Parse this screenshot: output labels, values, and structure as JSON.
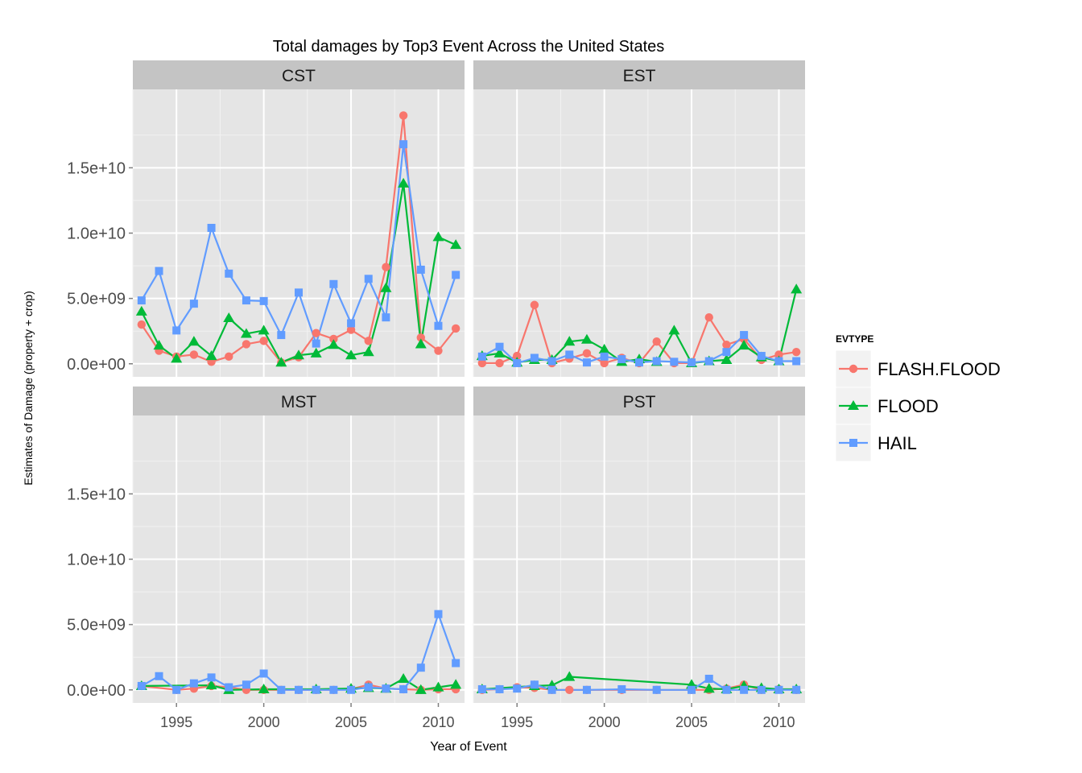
{
  "chart_data": {
    "type": "line",
    "title": "Total damages by Top3 Event Across the United States",
    "xlabel": "Year of Event",
    "ylabel": "Estimates of Damage (property + crop)",
    "xlim": [
      1992.5,
      2011.5
    ],
    "ylim": [
      -1000000000,
      21000000000
    ],
    "x_ticks": [
      1995,
      2000,
      2005,
      2010
    ],
    "y_ticks": [
      0,
      5000000000,
      10000000000,
      15000000000
    ],
    "y_tick_labels": [
      "0.0e+00",
      "5.0e+09",
      "1.0e+10",
      "1.5e+10"
    ],
    "grid": true,
    "legend": {
      "title": "EVTYPE",
      "position": "right",
      "entries": [
        {
          "label": "FLASH.FLOOD",
          "color": "#F8766D",
          "shape": "circle"
        },
        {
          "label": "FLOOD",
          "color": "#00BA38",
          "shape": "triangle"
        },
        {
          "label": "HAIL",
          "color": "#619CFF",
          "shape": "square"
        }
      ]
    },
    "panels": [
      {
        "name": "CST",
        "series": [
          {
            "name": "FLASH.FLOOD",
            "x": [
              1993,
              1994,
              1995,
              1996,
              1997,
              1998,
              1999,
              2000,
              2001,
              2002,
              2003,
              2004,
              2005,
              2006,
              2007,
              2008,
              2009,
              2010,
              2011
            ],
            "values": [
              3000000000,
              1000000000,
              550000000,
              700000000,
              150000000,
              550000000,
              1500000000,
              1750000000,
              100000000,
              500000000,
              2350000000,
              1900000000,
              2600000000,
              1750000000,
              7400000000,
              19000000000,
              2000000000,
              1000000000,
              2700000000
            ]
          },
          {
            "name": "FLOOD",
            "x": [
              1993,
              1994,
              1995,
              1996,
              1997,
              1998,
              1999,
              2000,
              2001,
              2002,
              2003,
              2004,
              2005,
              2006,
              2007,
              2008,
              2009,
              2010,
              2011
            ],
            "values": [
              4000000000,
              1400000000,
              400000000,
              1700000000,
              600000000,
              3500000000,
              2300000000,
              2550000000,
              100000000,
              650000000,
              800000000,
              1450000000,
              650000000,
              900000000,
              5800000000,
              13800000000,
              1500000000,
              9700000000,
              9100000000
            ]
          },
          {
            "name": "HAIL",
            "x": [
              1993,
              1994,
              1995,
              1996,
              1997,
              1998,
              1999,
              2000,
              2001,
              2002,
              2003,
              2004,
              2005,
              2006,
              2007,
              2008,
              2009,
              2010,
              2011
            ],
            "values": [
              4850000000,
              7100000000,
              2550000000,
              4600000000,
              10400000000,
              6900000000,
              4850000000,
              4800000000,
              2200000000,
              5450000000,
              1550000000,
              6100000000,
              3100000000,
              6500000000,
              3550000000,
              16800000000,
              7200000000,
              2900000000,
              6800000000
            ]
          }
        ]
      },
      {
        "name": "EST",
        "series": [
          {
            "name": "FLASH.FLOOD",
            "x": [
              1993,
              1994,
              1995,
              1996,
              1997,
              1998,
              1999,
              2000,
              2001,
              2002,
              2003,
              2004,
              2005,
              2006,
              2007,
              2008,
              2009,
              2010,
              2011
            ],
            "values": [
              50000000,
              50000000,
              600000000,
              4500000000,
              50000000,
              400000000,
              800000000,
              50000000,
              450000000,
              50000000,
              1700000000,
              50000000,
              50000000,
              3550000000,
              1450000000,
              1900000000,
              300000000,
              700000000,
              900000000
            ]
          },
          {
            "name": "FLOOD",
            "x": [
              1993,
              1994,
              1995,
              1996,
              1997,
              1998,
              1999,
              2000,
              2001,
              2002,
              2003,
              2004,
              2005,
              2006,
              2007,
              2008,
              2009,
              2010,
              2011
            ],
            "values": [
              600000000,
              800000000,
              100000000,
              300000000,
              300000000,
              1700000000,
              1850000000,
              1100000000,
              150000000,
              350000000,
              150000000,
              2550000000,
              50000000,
              200000000,
              300000000,
              1400000000,
              500000000,
              200000000,
              5700000000
            ]
          },
          {
            "name": "HAIL",
            "x": [
              1993,
              1994,
              1995,
              1996,
              1997,
              1998,
              1999,
              2000,
              2001,
              2002,
              2003,
              2004,
              2005,
              2006,
              2007,
              2008,
              2009,
              2010,
              2011
            ],
            "values": [
              550000000,
              1300000000,
              50000000,
              450000000,
              200000000,
              700000000,
              100000000,
              550000000,
              350000000,
              100000000,
              200000000,
              150000000,
              100000000,
              200000000,
              900000000,
              2200000000,
              600000000,
              200000000,
              200000000
            ]
          }
        ]
      },
      {
        "name": "MST",
        "series": [
          {
            "name": "FLASH.FLOOD",
            "x": [
              1993,
              1995,
              1996,
              1997,
              1998,
              1999,
              2000,
              2001,
              2002,
              2003,
              2004,
              2005,
              2006,
              2007,
              2008,
              2009,
              2010,
              2011
            ],
            "values": [
              300000000,
              0,
              100000000,
              300000000,
              200000000,
              0,
              0,
              0,
              0,
              0,
              0,
              50000000,
              400000000,
              100000000,
              50000000,
              0,
              50000000,
              50000000
            ]
          },
          {
            "name": "FLOOD",
            "x": [
              1993,
              1997,
              1998,
              2000,
              2003,
              2005,
              2006,
              2007,
              2008,
              2009,
              2010,
              2011
            ],
            "values": [
              300000000,
              350000000,
              0,
              50000000,
              50000000,
              100000000,
              150000000,
              100000000,
              850000000,
              0,
              200000000,
              400000000
            ]
          },
          {
            "name": "HAIL",
            "x": [
              1993,
              1994,
              1995,
              1996,
              1997,
              1998,
              1999,
              2000,
              2001,
              2002,
              2003,
              2004,
              2005,
              2006,
              2007,
              2008,
              2009,
              2010,
              2011
            ],
            "values": [
              300000000,
              1050000000,
              0,
              500000000,
              950000000,
              200000000,
              400000000,
              1250000000,
              0,
              0,
              0,
              0,
              0,
              200000000,
              100000000,
              50000000,
              1700000000,
              5800000000,
              2050000000
            ]
          }
        ]
      },
      {
        "name": "PST",
        "series": [
          {
            "name": "FLASH.FLOOD",
            "x": [
              1993,
              1994,
              1995,
              1996,
              1997,
              1998,
              1999,
              2001,
              2003,
              2005,
              2006,
              2007,
              2008,
              2009,
              2010,
              2011
            ],
            "values": [
              0,
              50000000,
              200000000,
              150000000,
              0,
              0,
              0,
              0,
              0,
              0,
              0,
              100000000,
              400000000,
              0,
              50000000,
              0
            ]
          },
          {
            "name": "FLOOD",
            "x": [
              1993,
              1996,
              1997,
              1998,
              2005,
              2006,
              2007,
              2008,
              2009,
              2010,
              2011
            ],
            "values": [
              50000000,
              300000000,
              350000000,
              1000000000,
              400000000,
              100000000,
              50000000,
              300000000,
              150000000,
              50000000,
              50000000
            ]
          },
          {
            "name": "HAIL",
            "x": [
              1993,
              1994,
              1995,
              1996,
              1997,
              1999,
              2001,
              2003,
              2005,
              2006,
              2007,
              2008,
              2009,
              2010,
              2011
            ],
            "values": [
              50000000,
              50000000,
              100000000,
              400000000,
              0,
              0,
              50000000,
              0,
              0,
              850000000,
              0,
              0,
              0,
              0,
              0
            ]
          }
        ]
      }
    ]
  }
}
